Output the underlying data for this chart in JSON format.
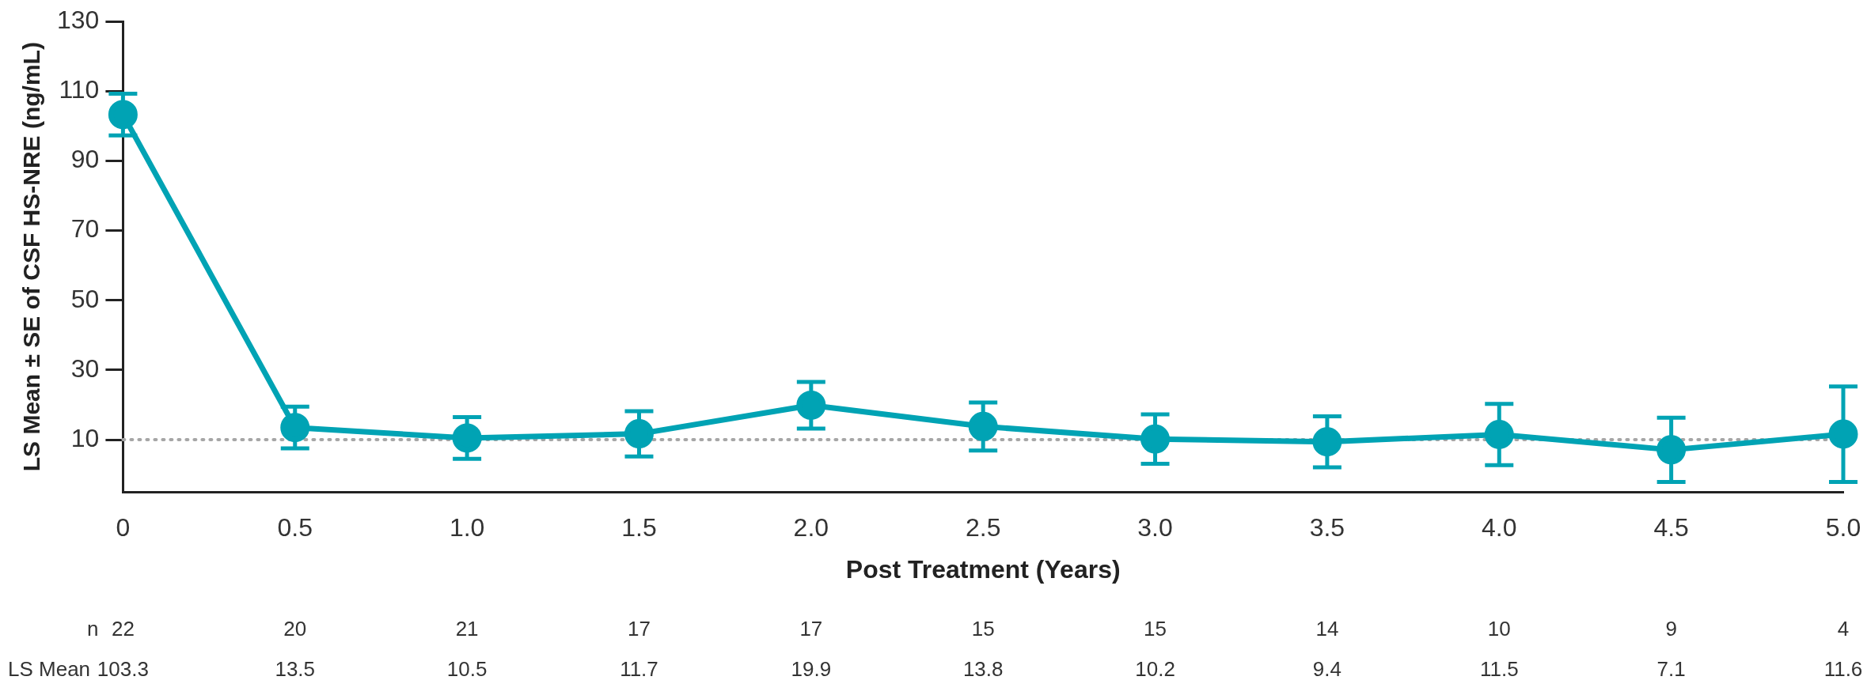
{
  "chart_data": {
    "type": "line",
    "xlabel": "Post Treatment (Years)",
    "ylabel": "LS Mean ± SE of CSF HS-NRE (ng/mL)",
    "categories": [
      "0",
      "0.5",
      "1.0",
      "1.5",
      "2.0",
      "2.5",
      "3.0",
      "3.5",
      "4.0",
      "4.5",
      "5.0"
    ],
    "series": [
      {
        "color": "#00a3b4",
        "values": [
          103.3,
          13.5,
          10.5,
          11.7,
          19.9,
          13.8,
          10.2,
          9.4,
          11.5,
          7.1,
          11.6
        ],
        "errors": [
          6,
          6,
          6,
          6.5,
          6.7,
          6.9,
          7.1,
          7.3,
          8.8,
          9.2,
          13.7
        ]
      }
    ],
    "ylim": [
      -5,
      130
    ],
    "yticks": [
      10,
      30,
      50,
      70,
      90,
      110,
      130
    ],
    "grid": false,
    "legend": false,
    "marker": "circle",
    "line_style": "solid",
    "data_labels": true,
    "ref_lines": [
      {
        "axis": "y",
        "value": 10,
        "color": "#a6a6a6",
        "line_style": "dotted"
      }
    ],
    "annotations": [
      "n",
      "LS Mean",
      "22",
      "20",
      "21",
      "17",
      "17",
      "15",
      "15",
      "14",
      "10",
      "9",
      "4"
    ]
  }
}
